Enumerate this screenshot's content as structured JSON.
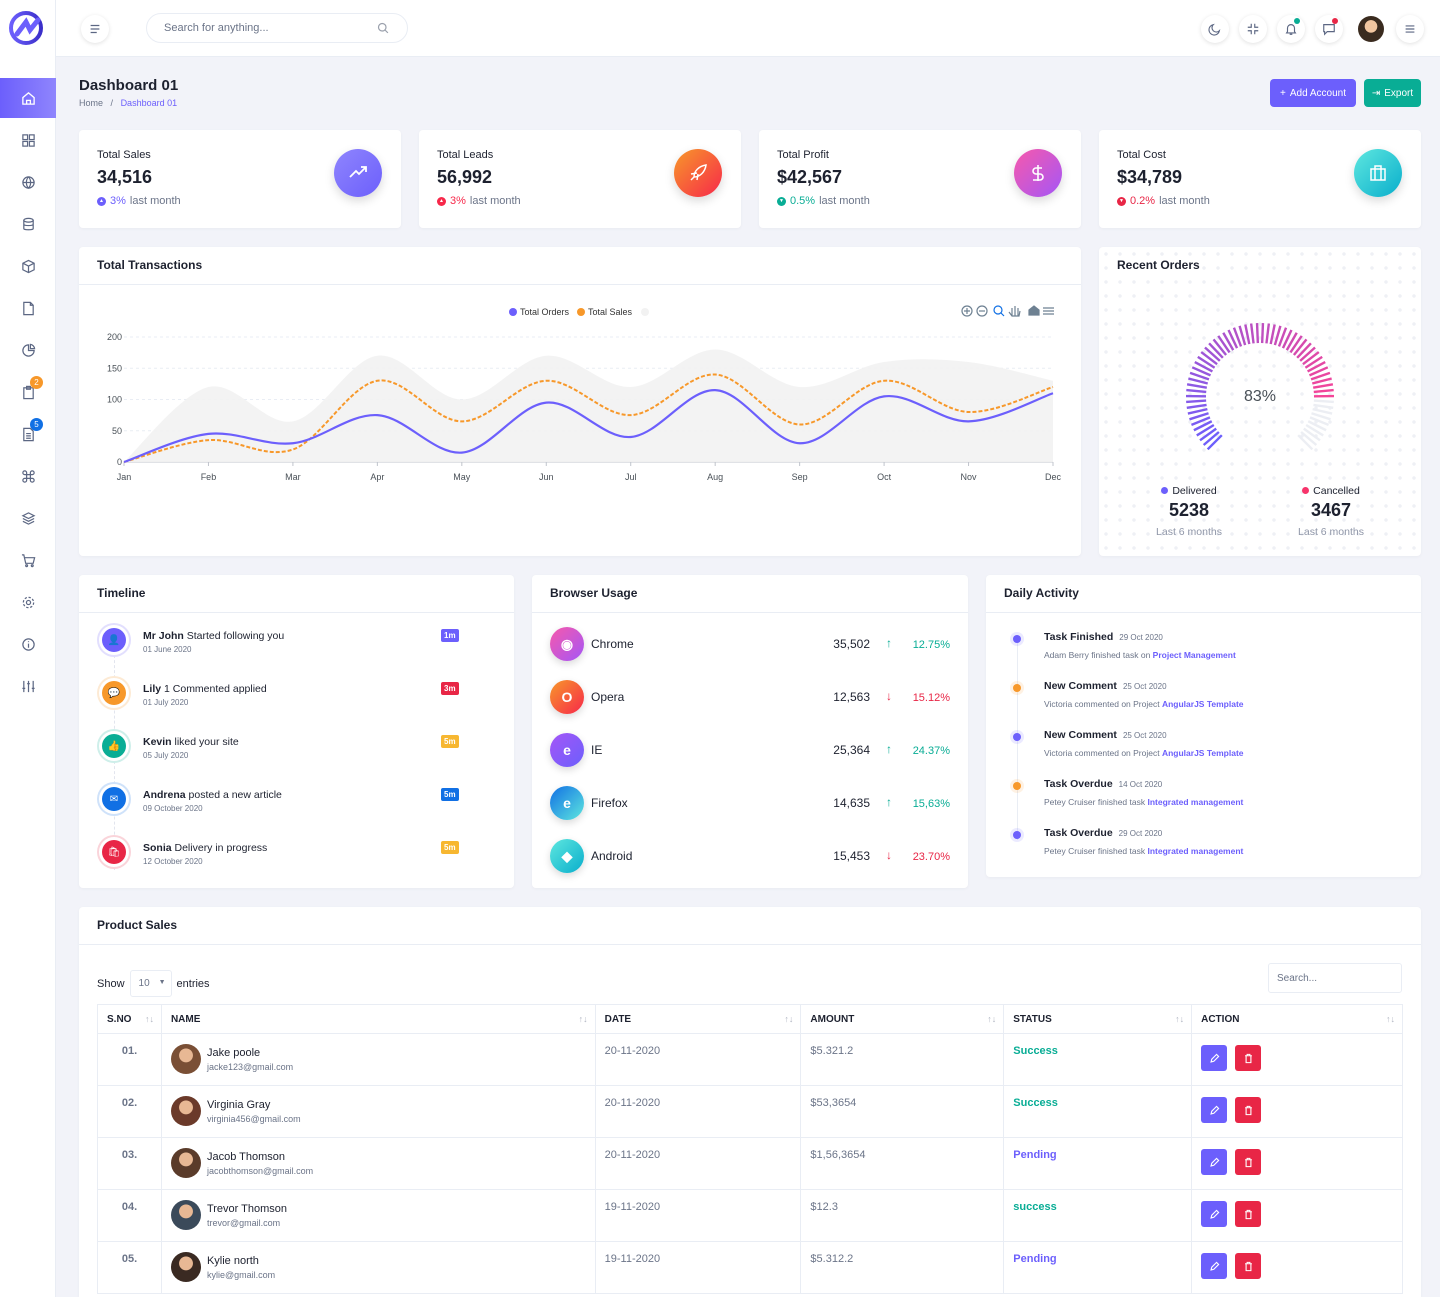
{
  "header": {
    "search_placeholder": "Search for anything..."
  },
  "page": {
    "title": "Dashboard 01",
    "crumb_home": "Home",
    "crumb_sep": "/",
    "crumb_current": "Dashboard 01"
  },
  "actions": {
    "add_account": "Add Account",
    "export": "Export"
  },
  "sidebar": {
    "badges": [
      "2",
      "5"
    ]
  },
  "stats": [
    {
      "label": "Total Sales",
      "value": "34,516",
      "change": "3%",
      "suffix": "last month",
      "color": "#6c5ffc"
    },
    {
      "label": "Total Leads",
      "value": "56,992",
      "change": "3%",
      "suffix": "last month",
      "color": "#f7284a"
    },
    {
      "label": "Total Profit",
      "value": "$42,567",
      "change": "0.5%",
      "suffix": "last month",
      "color": "#09ad95"
    },
    {
      "label": "Total Cost",
      "value": "$34,789",
      "change": "0.2%",
      "suffix": "last month",
      "color": "#e82646"
    }
  ],
  "transactions": {
    "title": "Total Transactions"
  },
  "chart_data": {
    "type": "area",
    "categories": [
      "Jan",
      "Feb",
      "Mar",
      "Apr",
      "May",
      "Jun",
      "Jul",
      "Aug",
      "Sep",
      "Oct",
      "Nov",
      "Dec"
    ],
    "series": [
      {
        "name": "Total Orders",
        "values": [
          0,
          45,
          30,
          75,
          15,
          95,
          40,
          115,
          30,
          105,
          65,
          110
        ]
      },
      {
        "name": "Total Sales",
        "values": [
          0,
          35,
          20,
          130,
          65,
          130,
          75,
          140,
          60,
          130,
          80,
          120
        ]
      },
      {
        "name": "",
        "values": [
          0,
          120,
          65,
          170,
          100,
          170,
          120,
          180,
          120,
          160,
          160,
          130
        ]
      }
    ],
    "ylim": [
      0,
      200
    ],
    "yticks": [
      "0",
      "50",
      "100",
      "150",
      "200"
    ],
    "legend": "top-center",
    "colors": [
      "#6c5ffc",
      "#f7982a",
      "#f2f2f2"
    ]
  },
  "recent_orders": {
    "title": "Recent Orders",
    "percent": "83%",
    "percent_value": 0.83,
    "delivered_label": "Delivered",
    "delivered_value": "5238",
    "delivered_sub": "Last 6 months",
    "cancelled_label": "Cancelled",
    "cancelled_value": "3467",
    "cancelled_sub": "Last 6 months"
  },
  "timeline": {
    "title": "Timeline",
    "items": [
      {
        "name": "Mr John",
        "text": " Started following you",
        "date": "01 June 2020",
        "badge": "1m",
        "color": "#6c5ffc",
        "badge_color": "#6c5ffc"
      },
      {
        "name": "Lily",
        "text": " 1 Commented applied",
        "date": "01 July 2020",
        "badge": "3m",
        "color": "#f7982a",
        "badge_color": "#e82646"
      },
      {
        "name": "Kevin",
        "text": " liked your site",
        "date": "05 July 2020",
        "badge": "5m",
        "color": "#09ad95",
        "badge_color": "#f7b731"
      },
      {
        "name": "Andrena",
        "text": " posted a new article",
        "date": "09 October 2020",
        "badge": "5m",
        "color": "#1170e4",
        "badge_color": "#1170e4"
      },
      {
        "name": "Sonia",
        "text": " Delivery in progress",
        "date": "12 October 2020",
        "badge": "5m",
        "color": "#e82646",
        "badge_color": "#f7b731"
      }
    ]
  },
  "browser": {
    "title": "Browser Usage",
    "items": [
      {
        "name": "Chrome",
        "value": "35,502",
        "pct": "12.75%",
        "up": true
      },
      {
        "name": "Opera",
        "value": "12,563",
        "pct": "15.12%",
        "up": false
      },
      {
        "name": "IE",
        "value": "25,364",
        "pct": "24.37%",
        "up": true
      },
      {
        "name": "Firefox",
        "value": "14,635",
        "pct": "15,63%",
        "up": true
      },
      {
        "name": "Android",
        "value": "15,453",
        "pct": "23.70%",
        "up": false
      }
    ]
  },
  "activity": {
    "title": "Daily Activity",
    "items": [
      {
        "title": "Task Finished",
        "date": "29 Oct 2020",
        "desc": "Adam Berry finished task on ",
        "link": "Project Management"
      },
      {
        "title": "New Comment",
        "date": "25 Oct 2020",
        "desc": "Victoria commented on Project ",
        "link": "AngularJS Template"
      },
      {
        "title": "New Comment",
        "date": "25 Oct 2020",
        "desc": "Victoria commented on Project ",
        "link": "AngularJS Template"
      },
      {
        "title": "Task Overdue",
        "date": "14 Oct 2020",
        "desc": "Petey Cruiser finished task ",
        "link": "Integrated management"
      },
      {
        "title": "Task Overdue",
        "date": "29 Oct 2020",
        "desc": "Petey Cruiser finished task ",
        "link": "Integrated management"
      }
    ]
  },
  "products": {
    "title": "Product Sales",
    "show": "Show",
    "entries_value": "10",
    "entries": "entries",
    "search_placeholder": "Search...",
    "columns": [
      "S.NO",
      "NAME",
      "DATE",
      "AMOUNT",
      "STATUS",
      "ACTION"
    ],
    "rows": [
      {
        "sno": "01.",
        "name": "Jake poole",
        "email": "jacke123@gmail.com",
        "date": "20-11-2020",
        "amount": "$5.321.2",
        "status": "Success"
      },
      {
        "sno": "02.",
        "name": "Virginia Gray",
        "email": "virginia456@gmail.com",
        "date": "20-11-2020",
        "amount": "$53,3654",
        "status": "Success"
      },
      {
        "sno": "03.",
        "name": "Jacob Thomson",
        "email": "jacobthomson@gmail.com",
        "date": "20-11-2020",
        "amount": "$1,56,3654",
        "status": "Pending"
      },
      {
        "sno": "04.",
        "name": "Trevor Thomson",
        "email": "trevor@gmail.com",
        "date": "19-11-2020",
        "amount": "$12.3",
        "status": "success"
      },
      {
        "sno": "05.",
        "name": "Kylie north",
        "email": "kylie@gmail.com",
        "date": "19-11-2020",
        "amount": "$5.312.2",
        "status": "Pending"
      }
    ]
  }
}
